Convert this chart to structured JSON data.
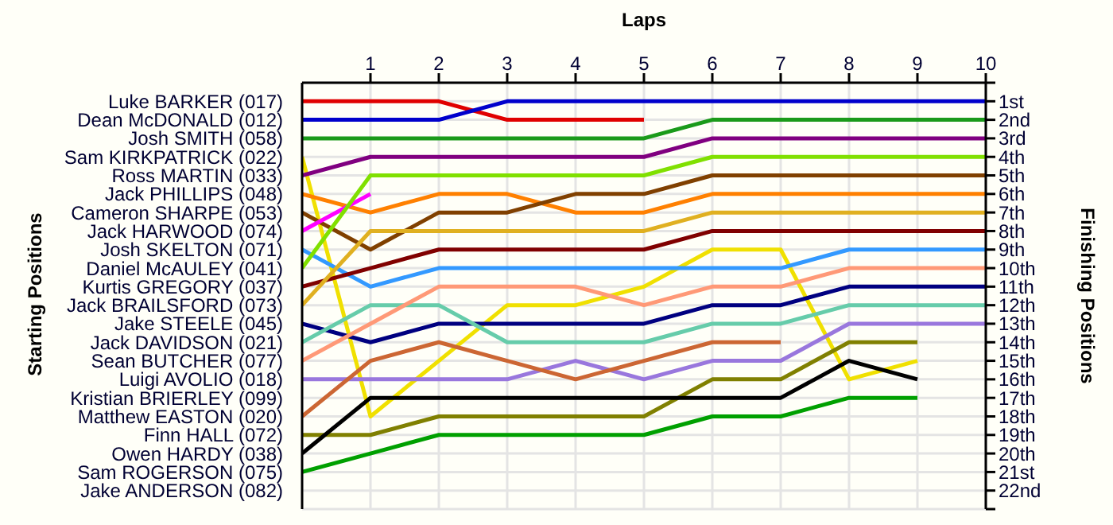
{
  "chart_data": {
    "type": "line",
    "xlabel": "Laps",
    "ylabel": "Finishing Positions",
    "x": [
      0,
      1,
      2,
      3,
      4,
      5,
      6,
      7,
      8,
      9,
      10
    ],
    "xlim": [
      0,
      10
    ],
    "xticks": [
      1,
      2,
      3,
      4,
      5,
      6,
      7,
      8,
      9,
      10
    ],
    "ylim": [
      23,
      0
    ],
    "yticks": [
      {
        "value": 0,
        "label": null
      },
      {
        "value": 1,
        "label": "1st"
      },
      {
        "value": 2,
        "label": "2nd"
      },
      {
        "value": 3,
        "label": "3rd"
      },
      {
        "value": 4,
        "label": "4th"
      },
      {
        "value": 5,
        "label": "5th"
      },
      {
        "value": 6,
        "label": "6th"
      },
      {
        "value": 7,
        "label": "7th"
      },
      {
        "value": 8,
        "label": "8th"
      },
      {
        "value": 9,
        "label": "9th"
      },
      {
        "value": 10,
        "label": "10th"
      },
      {
        "value": 11,
        "label": "11th"
      },
      {
        "value": 12,
        "label": "12th"
      },
      {
        "value": 13,
        "label": "13th"
      },
      {
        "value": 14,
        "label": "14th"
      },
      {
        "value": 15,
        "label": "15th"
      },
      {
        "value": 16,
        "label": "16th"
      },
      {
        "value": 17,
        "label": "17th"
      },
      {
        "value": 18,
        "label": "18th"
      },
      {
        "value": 19,
        "label": "19th"
      },
      {
        "value": 20,
        "label": "20th"
      },
      {
        "value": 21,
        "label": "21st"
      },
      {
        "value": 22,
        "label": "22nd"
      },
      {
        "value": 23,
        "label": null
      }
    ],
    "annotations": [
      "Starting Positions",
      "Luke BARKER (017)",
      "Dean McDONALD (012)",
      "Josh SMITH (058)",
      "Sam KIRKPATRICK (022)",
      "Ross MARTIN (033)",
      "Jack PHILLIPS (048)",
      "Cameron SHARPE (053)",
      "Jack HARWOOD (074)",
      "Josh SKELTON (071)",
      "Daniel McAULEY (041)",
      "Kurtis GREGORY (037)",
      "Jack BRAILSFORD (073)",
      "Jake STEELE (045)",
      "Jack DAVIDSON (021)",
      "Sean BUTCHER (077)",
      "Luigi AVOLIO (018)",
      "Kristian BRIERLEY (099)",
      "Matthew EASTON (020)",
      "Finn HALL (072)",
      "Owen HARDY (038)",
      "Sam ROGERSON (075)",
      "Jake ANDERSON (082)"
    ],
    "grid": true,
    "marker": "none",
    "line_style": "solid",
    "series": [
      {
        "color": "#e00000",
        "values": [
          1,
          1,
          1,
          2,
          2,
          2,
          null,
          null,
          null,
          null,
          null
        ]
      },
      {
        "color": "#0000cc",
        "values": [
          2,
          2,
          2,
          1,
          1,
          1,
          1,
          1,
          1,
          1,
          1
        ]
      },
      {
        "color": "#1a9a1a",
        "values": [
          3,
          3,
          3,
          3,
          3,
          3,
          2,
          2,
          2,
          2,
          2
        ]
      },
      {
        "color": "#f0e000",
        "values": [
          4,
          18,
          15,
          12,
          12,
          11,
          9,
          9,
          16,
          15,
          null
        ]
      },
      {
        "color": "#800080",
        "values": [
          5,
          4,
          4,
          4,
          4,
          4,
          3,
          3,
          3,
          3,
          3
        ]
      },
      {
        "color": "#ff8000",
        "values": [
          6,
          7,
          6,
          6,
          7,
          7,
          6,
          6,
          6,
          6,
          6
        ]
      },
      {
        "color": "#804000",
        "values": [
          7,
          9,
          7,
          7,
          6,
          6,
          5,
          5,
          5,
          5,
          5
        ]
      },
      {
        "color": "#ff00ff",
        "values": [
          8,
          6,
          null,
          null,
          null,
          null,
          null,
          null,
          null,
          null,
          null
        ]
      },
      {
        "color": "#3399ff",
        "values": [
          9,
          11,
          10,
          10,
          10,
          10,
          10,
          10,
          9,
          9,
          9
        ]
      },
      {
        "color": "#80e000",
        "values": [
          10,
          5,
          5,
          5,
          5,
          5,
          4,
          4,
          4,
          4,
          4
        ]
      },
      {
        "color": "#800000",
        "values": [
          11,
          10,
          9,
          9,
          9,
          9,
          8,
          8,
          8,
          8,
          8
        ]
      },
      {
        "color": "#e0b020",
        "values": [
          12,
          8,
          8,
          8,
          8,
          8,
          7,
          7,
          7,
          7,
          7
        ]
      },
      {
        "color": "#000080",
        "values": [
          13,
          14,
          13,
          13,
          13,
          13,
          12,
          12,
          11,
          11,
          11
        ]
      },
      {
        "color": "#66ccaa",
        "values": [
          14,
          12,
          12,
          14,
          14,
          14,
          13,
          13,
          12,
          12,
          12
        ]
      },
      {
        "color": "#ff9977",
        "values": [
          15,
          13,
          11,
          11,
          11,
          12,
          11,
          11,
          10,
          10,
          10
        ]
      },
      {
        "color": "#9977dd",
        "values": [
          16,
          16,
          16,
          16,
          15,
          16,
          15,
          15,
          13,
          13,
          13
        ]
      },
      {
        "color": "#cc6633",
        "values": [
          18,
          15,
          14,
          15,
          16,
          15,
          14,
          14,
          null,
          null,
          null
        ]
      },
      {
        "color": "#808000",
        "values": [
          19,
          19,
          18,
          18,
          18,
          18,
          16,
          16,
          14,
          14,
          null
        ]
      },
      {
        "color": "#000000",
        "values": [
          20,
          17,
          17,
          17,
          17,
          17,
          17,
          17,
          15,
          16,
          null
        ]
      },
      {
        "color": "#00a000",
        "values": [
          21,
          20,
          19,
          19,
          19,
          19,
          18,
          18,
          17,
          17,
          null
        ]
      }
    ]
  }
}
